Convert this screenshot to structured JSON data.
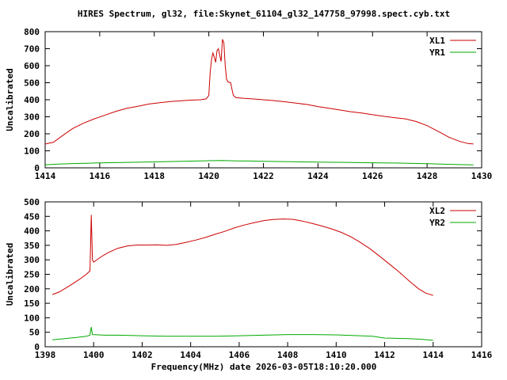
{
  "title": "HIRES Spectrum, gl32, file:Skynet_61104_gl32_147758_97998.spect.cyb.txt",
  "xlabel": "Frequency(MHz) date 2026-03-05T18:10:20.000",
  "colors": {
    "series_red": "#cc0000",
    "series_green": "#00aa00",
    "axis": "#000000",
    "background": "#ffffff"
  },
  "chart_data": [
    {
      "type": "line",
      "title": "",
      "ylabel": "Uncalibrated",
      "xlabel": "",
      "xlim": [
        1414,
        1430
      ],
      "ylim": [
        0,
        800
      ],
      "xticks": [
        1414,
        1416,
        1418,
        1420,
        1422,
        1424,
        1426,
        1428,
        1430
      ],
      "yticks": [
        0,
        100,
        200,
        300,
        400,
        500,
        600,
        700,
        800
      ],
      "grid": false,
      "legend_position": "top-right",
      "series": [
        {
          "name": "XL1",
          "color": "#cc0000",
          "points": [
            [
              1414.0,
              140
            ],
            [
              1414.3,
              150
            ],
            [
              1414.6,
              185
            ],
            [
              1415.0,
              230
            ],
            [
              1415.4,
              262
            ],
            [
              1415.8,
              288
            ],
            [
              1416.2,
              310
            ],
            [
              1416.6,
              332
            ],
            [
              1417.0,
              350
            ],
            [
              1417.4,
              362
            ],
            [
              1417.8,
              375
            ],
            [
              1418.2,
              383
            ],
            [
              1418.6,
              390
            ],
            [
              1419.0,
              394
            ],
            [
              1419.4,
              398
            ],
            [
              1419.7,
              400
            ],
            [
              1419.9,
              405
            ],
            [
              1420.0,
              425
            ],
            [
              1420.05,
              560
            ],
            [
              1420.1,
              640
            ],
            [
              1420.15,
              675
            ],
            [
              1420.2,
              650
            ],
            [
              1420.25,
              620
            ],
            [
              1420.3,
              690
            ],
            [
              1420.35,
              700
            ],
            [
              1420.4,
              660
            ],
            [
              1420.45,
              625
            ],
            [
              1420.5,
              755
            ],
            [
              1420.55,
              735
            ],
            [
              1420.6,
              600
            ],
            [
              1420.65,
              520
            ],
            [
              1420.7,
              505
            ],
            [
              1420.8,
              500
            ],
            [
              1420.85,
              460
            ],
            [
              1420.9,
              425
            ],
            [
              1421.0,
              412
            ],
            [
              1421.3,
              408
            ],
            [
              1421.6,
              405
            ],
            [
              1422.0,
              400
            ],
            [
              1422.4,
              395
            ],
            [
              1422.8,
              388
            ],
            [
              1423.2,
              380
            ],
            [
              1423.6,
              372
            ],
            [
              1424.0,
              360
            ],
            [
              1424.4,
              350
            ],
            [
              1424.8,
              340
            ],
            [
              1425.2,
              330
            ],
            [
              1425.6,
              322
            ],
            [
              1426.0,
              312
            ],
            [
              1426.4,
              303
            ],
            [
              1426.8,
              295
            ],
            [
              1427.2,
              288
            ],
            [
              1427.6,
              272
            ],
            [
              1428.0,
              248
            ],
            [
              1428.4,
              215
            ],
            [
              1428.8,
              180
            ],
            [
              1429.2,
              155
            ],
            [
              1429.5,
              143
            ],
            [
              1429.7,
              140
            ]
          ]
        },
        {
          "name": "YR1",
          "color": "#00aa00",
          "points": [
            [
              1414.0,
              18
            ],
            [
              1414.5,
              22
            ],
            [
              1415.0,
              25
            ],
            [
              1415.5,
              27
            ],
            [
              1416.0,
              29
            ],
            [
              1417.0,
              32
            ],
            [
              1418.0,
              35
            ],
            [
              1419.0,
              38
            ],
            [
              1419.5,
              40
            ],
            [
              1420.0,
              42
            ],
            [
              1420.5,
              43
            ],
            [
              1421.0,
              41
            ],
            [
              1421.5,
              40
            ],
            [
              1422.0,
              38
            ],
            [
              1423.0,
              36
            ],
            [
              1424.0,
              34
            ],
            [
              1425.0,
              32
            ],
            [
              1426.0,
              30
            ],
            [
              1427.0,
              28
            ],
            [
              1428.0,
              24
            ],
            [
              1428.5,
              22
            ],
            [
              1429.0,
              20
            ],
            [
              1429.7,
              17
            ]
          ]
        }
      ]
    },
    {
      "type": "line",
      "title": "",
      "ylabel": "Uncalibrated",
      "xlabel": "Frequency(MHz) date 2026-03-05T18:10:20.000",
      "xlim": [
        1398,
        1416
      ],
      "ylim": [
        0,
        500
      ],
      "xticks": [
        1398,
        1400,
        1402,
        1404,
        1406,
        1408,
        1410,
        1412,
        1414,
        1416
      ],
      "yticks": [
        0,
        50,
        100,
        150,
        200,
        250,
        300,
        350,
        400,
        450,
        500
      ],
      "grid": false,
      "legend_position": "top-right",
      "series": [
        {
          "name": "XL2",
          "color": "#cc0000",
          "points": [
            [
              1398.3,
              180
            ],
            [
              1398.6,
              190
            ],
            [
              1399.0,
              210
            ],
            [
              1399.4,
              232
            ],
            [
              1399.7,
              250
            ],
            [
              1399.85,
              262
            ],
            [
              1399.9,
              455
            ],
            [
              1399.95,
              300
            ],
            [
              1400.0,
              292
            ],
            [
              1400.3,
              310
            ],
            [
              1400.6,
              325
            ],
            [
              1401.0,
              340
            ],
            [
              1401.4,
              348
            ],
            [
              1401.8,
              351
            ],
            [
              1402.2,
              351
            ],
            [
              1402.6,
              352
            ],
            [
              1403.0,
              350
            ],
            [
              1403.4,
              353
            ],
            [
              1403.8,
              360
            ],
            [
              1404.2,
              368
            ],
            [
              1404.6,
              377
            ],
            [
              1405.0,
              388
            ],
            [
              1405.4,
              398
            ],
            [
              1405.8,
              410
            ],
            [
              1406.2,
              420
            ],
            [
              1406.6,
              428
            ],
            [
              1407.0,
              435
            ],
            [
              1407.4,
              439
            ],
            [
              1407.8,
              441
            ],
            [
              1408.2,
              440
            ],
            [
              1408.6,
              434
            ],
            [
              1409.0,
              426
            ],
            [
              1409.4,
              417
            ],
            [
              1409.8,
              407
            ],
            [
              1410.2,
              395
            ],
            [
              1410.6,
              380
            ],
            [
              1411.0,
              360
            ],
            [
              1411.4,
              338
            ],
            [
              1411.8,
              312
            ],
            [
              1412.2,
              285
            ],
            [
              1412.6,
              258
            ],
            [
              1413.0,
              228
            ],
            [
              1413.4,
              200
            ],
            [
              1413.7,
              185
            ],
            [
              1414.0,
              177
            ]
          ]
        },
        {
          "name": "YR2",
          "color": "#00aa00",
          "points": [
            [
              1398.3,
              24
            ],
            [
              1398.8,
              28
            ],
            [
              1399.3,
              32
            ],
            [
              1399.7,
              36
            ],
            [
              1399.85,
              40
            ],
            [
              1399.9,
              68
            ],
            [
              1399.95,
              42
            ],
            [
              1400.5,
              40
            ],
            [
              1401.0,
              40
            ],
            [
              1402.0,
              38
            ],
            [
              1403.0,
              36
            ],
            [
              1404.0,
              36
            ],
            [
              1405.0,
              36
            ],
            [
              1406.0,
              38
            ],
            [
              1407.0,
              40
            ],
            [
              1408.0,
              42
            ],
            [
              1409.0,
              42
            ],
            [
              1410.0,
              41
            ],
            [
              1411.0,
              38
            ],
            [
              1411.5,
              36
            ],
            [
              1412.0,
              30
            ],
            [
              1412.5,
              29
            ],
            [
              1413.0,
              28
            ],
            [
              1413.5,
              26
            ],
            [
              1414.0,
              22
            ]
          ]
        }
      ]
    }
  ]
}
